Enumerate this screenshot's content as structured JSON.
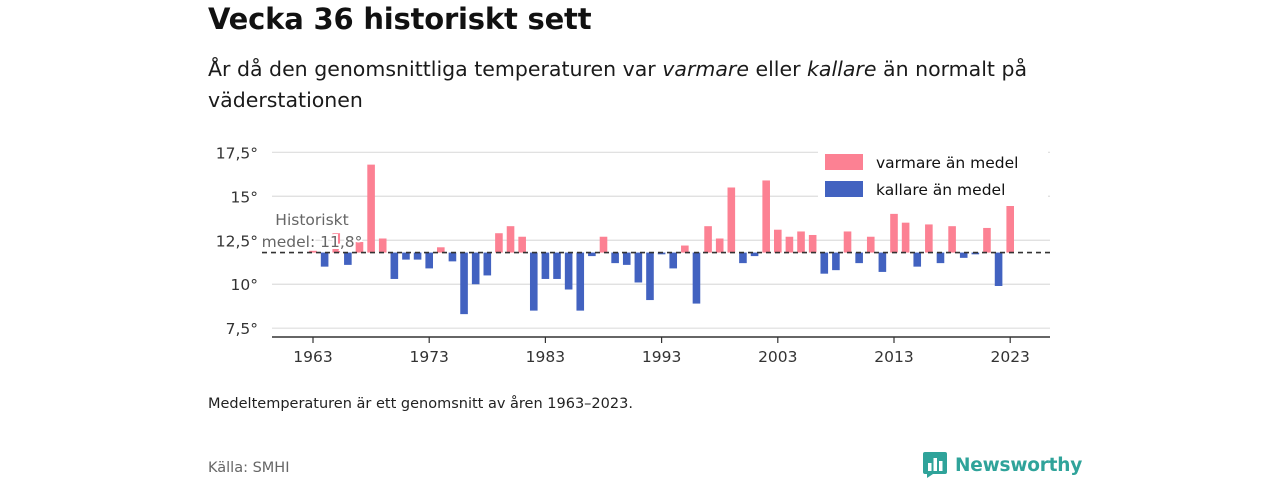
{
  "header": {
    "title": "Vecka 36 historiskt sett",
    "subtitle_parts": [
      "År då den genomsnittliga temperaturen var ",
      "varmare",
      " eller ",
      "kallare",
      " än normalt på väderstationen"
    ]
  },
  "footnote": "Medeltemperaturen är ett genomsnitt av åren 1963–2023.",
  "source": "Källa: SMHI",
  "brand": {
    "name": "Newsworthy",
    "icon": "bar-chart-speech-bubble-icon",
    "color": "#2fa39a"
  },
  "colors": {
    "warmer": "#fc8193",
    "colder": "#4262c0",
    "grid": "#dddddd",
    "axis": "#333333",
    "label": "#333333",
    "annotation": "#666666"
  },
  "chart_data": {
    "type": "bar",
    "baseline": 11.8,
    "baseline_label": [
      "Historiskt",
      "medel: 11,8°"
    ],
    "legend": {
      "warmer_label": "varmare än medel",
      "colder_label": "kallare än medel",
      "placement": "top-right"
    },
    "ylim": [
      7,
      18.2
    ],
    "y_ticks": [
      7.5,
      10,
      12.5,
      15,
      17.5
    ],
    "y_tick_labels": [
      "7,5°",
      "10°",
      "12,5°",
      "15°",
      "17,5°"
    ],
    "x_ticks": [
      1963,
      1973,
      1983,
      1993,
      2003,
      2013,
      2023
    ],
    "x_tick_labels": [
      "1963",
      "1973",
      "1983",
      "1993",
      "2003",
      "2013",
      "2023"
    ],
    "years": [
      1963,
      1964,
      1965,
      1966,
      1967,
      1968,
      1969,
      1970,
      1971,
      1972,
      1973,
      1974,
      1975,
      1976,
      1977,
      1978,
      1979,
      1980,
      1981,
      1982,
      1983,
      1984,
      1985,
      1986,
      1987,
      1988,
      1989,
      1990,
      1991,
      1992,
      1993,
      1994,
      1995,
      1996,
      1997,
      1998,
      1999,
      2000,
      2001,
      2002,
      2003,
      2004,
      2005,
      2006,
      2007,
      2008,
      2009,
      2010,
      2011,
      2012,
      2013,
      2014,
      2015,
      2016,
      2017,
      2018,
      2019,
      2020,
      2021,
      2022,
      2023
    ],
    "values": [
      11.9,
      11.0,
      12.9,
      11.1,
      12.4,
      16.8,
      12.6,
      10.3,
      11.4,
      11.4,
      10.9,
      12.1,
      11.3,
      8.3,
      10.0,
      10.5,
      12.9,
      13.3,
      12.7,
      8.5,
      10.3,
      10.3,
      9.7,
      8.5,
      11.6,
      12.7,
      11.2,
      11.1,
      10.1,
      9.1,
      11.7,
      10.9,
      12.2,
      8.9,
      13.3,
      12.6,
      15.5,
      11.2,
      11.6,
      15.9,
      13.1,
      12.7,
      13.0,
      12.8,
      10.6,
      10.8,
      13.0,
      11.2,
      12.7,
      10.7,
      14.0,
      13.5,
      11.0,
      13.4,
      11.2,
      13.3,
      11.5,
      11.7,
      13.2,
      9.9,
      14.9
    ]
  }
}
